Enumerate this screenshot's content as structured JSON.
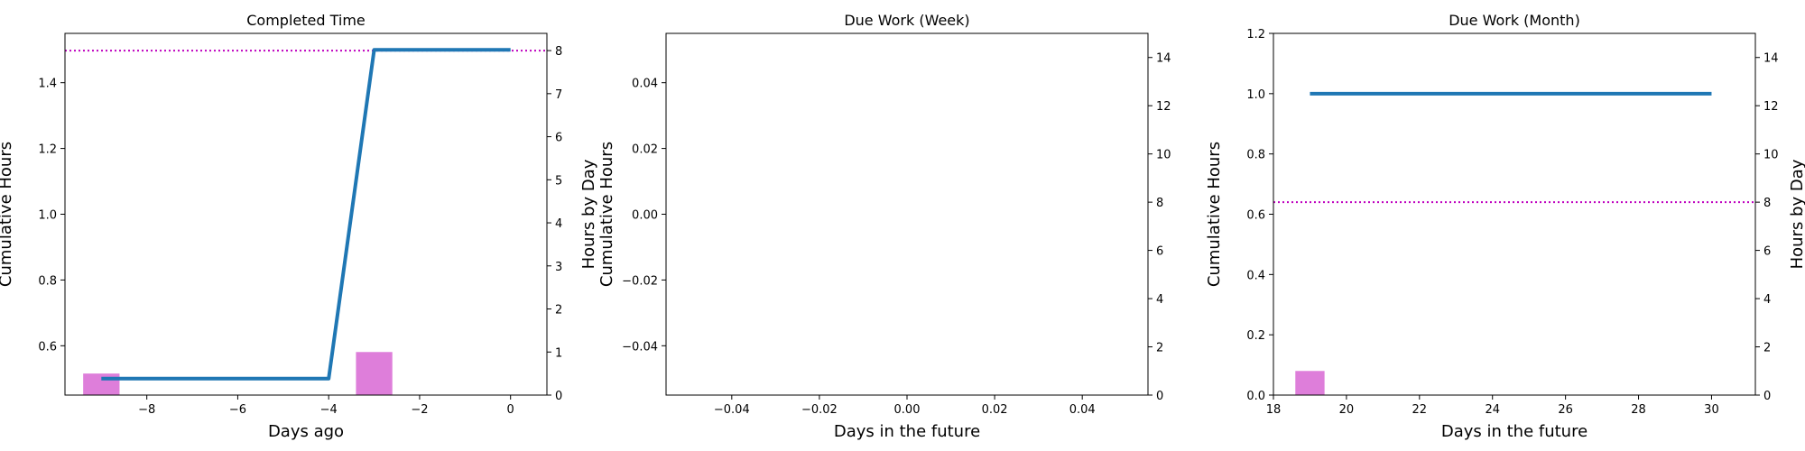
{
  "chart_data": [
    {
      "type": "line",
      "title": "Completed Time",
      "xlabel": "Days ago",
      "ylabel": "Cumulative Hours",
      "ylabel_right": "Hours by Day",
      "xlim": [
        -9.8,
        0.8
      ],
      "ylim": [
        0.45,
        1.55
      ],
      "y2lim": [
        0,
        8.4
      ],
      "xticks": [
        -8,
        -6,
        -4,
        -2,
        0
      ],
      "xtick_labels": [
        "−8",
        "−6",
        "−4",
        "−2",
        "0"
      ],
      "yticks": [
        0.6,
        0.8,
        1.0,
        1.2,
        1.4
      ],
      "ytick_labels": [
        "0.6",
        "0.8",
        "1.0",
        "1.2",
        "1.4"
      ],
      "y2ticks": [
        0,
        1,
        2,
        3,
        4,
        5,
        6,
        7,
        8
      ],
      "y2tick_labels": [
        "0",
        "1",
        "2",
        "3",
        "4",
        "5",
        "6",
        "7",
        "8"
      ],
      "series": [
        {
          "kind": "line",
          "axis": "left",
          "color": "#1f77b4",
          "x": [
            -9,
            -4,
            -3,
            0
          ],
          "y": [
            0.5,
            0.5,
            1.5,
            1.5
          ]
        }
      ],
      "bars": {
        "axis": "right",
        "color": "#da70d6",
        "width": 0.8,
        "x": [
          -9,
          -3
        ],
        "values": [
          0.5,
          1.0
        ]
      },
      "reference_line": {
        "axis": "right",
        "value": 8,
        "color": "#bf00bf",
        "style": "dotted"
      },
      "grid": false
    },
    {
      "type": "line",
      "title": "Due Work (Week)",
      "xlabel": "Days in the future",
      "ylabel": "Cumulative Hours",
      "ylabel_right": "",
      "xlim": [
        -0.055,
        0.055
      ],
      "ylim": [
        -0.055,
        0.055
      ],
      "y2lim": [
        0,
        15
      ],
      "xticks": [
        -0.04,
        -0.02,
        0.0,
        0.02,
        0.04
      ],
      "xtick_labels": [
        "−0.04",
        "−0.02",
        "0.00",
        "0.02",
        "0.04"
      ],
      "yticks": [
        -0.04,
        -0.02,
        0.0,
        0.02,
        0.04
      ],
      "ytick_labels": [
        "−0.04",
        "−0.02",
        "0.00",
        "0.02",
        "0.04"
      ],
      "y2ticks": [
        0,
        2,
        4,
        6,
        8,
        10,
        12,
        14
      ],
      "y2tick_labels": [
        "0",
        "2",
        "4",
        "6",
        "8",
        "10",
        "12",
        "14"
      ],
      "series": [],
      "bars": {
        "axis": "right",
        "color": "#da70d6",
        "width": 0.8,
        "x": [],
        "values": []
      },
      "reference_line": null,
      "grid": false
    },
    {
      "type": "line",
      "title": "Due Work (Month)",
      "xlabel": "Days in the future",
      "ylabel": "Cumulative Hours",
      "ylabel_right": "Hours by Day",
      "xlim": [
        18,
        31.2
      ],
      "ylim": [
        0,
        1.2
      ],
      "y2lim": [
        0,
        15
      ],
      "xticks": [
        18,
        20,
        22,
        24,
        26,
        28,
        30
      ],
      "xtick_labels": [
        "18",
        "20",
        "22",
        "24",
        "26",
        "28",
        "30"
      ],
      "yticks": [
        0.0,
        0.2,
        0.4,
        0.6,
        0.8,
        1.0,
        1.2
      ],
      "ytick_labels": [
        "0.0",
        "0.2",
        "0.4",
        "0.6",
        "0.8",
        "1.0",
        "1.2"
      ],
      "y2ticks": [
        0,
        2,
        4,
        6,
        8,
        10,
        12,
        14
      ],
      "y2tick_labels": [
        "0",
        "2",
        "4",
        "6",
        "8",
        "10",
        "12",
        "14"
      ],
      "series": [
        {
          "kind": "line",
          "axis": "left",
          "color": "#1f77b4",
          "x": [
            19,
            30
          ],
          "y": [
            1.0,
            1.0
          ]
        }
      ],
      "bars": {
        "axis": "right",
        "color": "#da70d6",
        "width": 0.8,
        "x": [
          19
        ],
        "values": [
          1.0
        ]
      },
      "reference_line": {
        "axis": "right",
        "value": 8,
        "color": "#bf00bf",
        "style": "dotted"
      },
      "grid": false
    }
  ]
}
